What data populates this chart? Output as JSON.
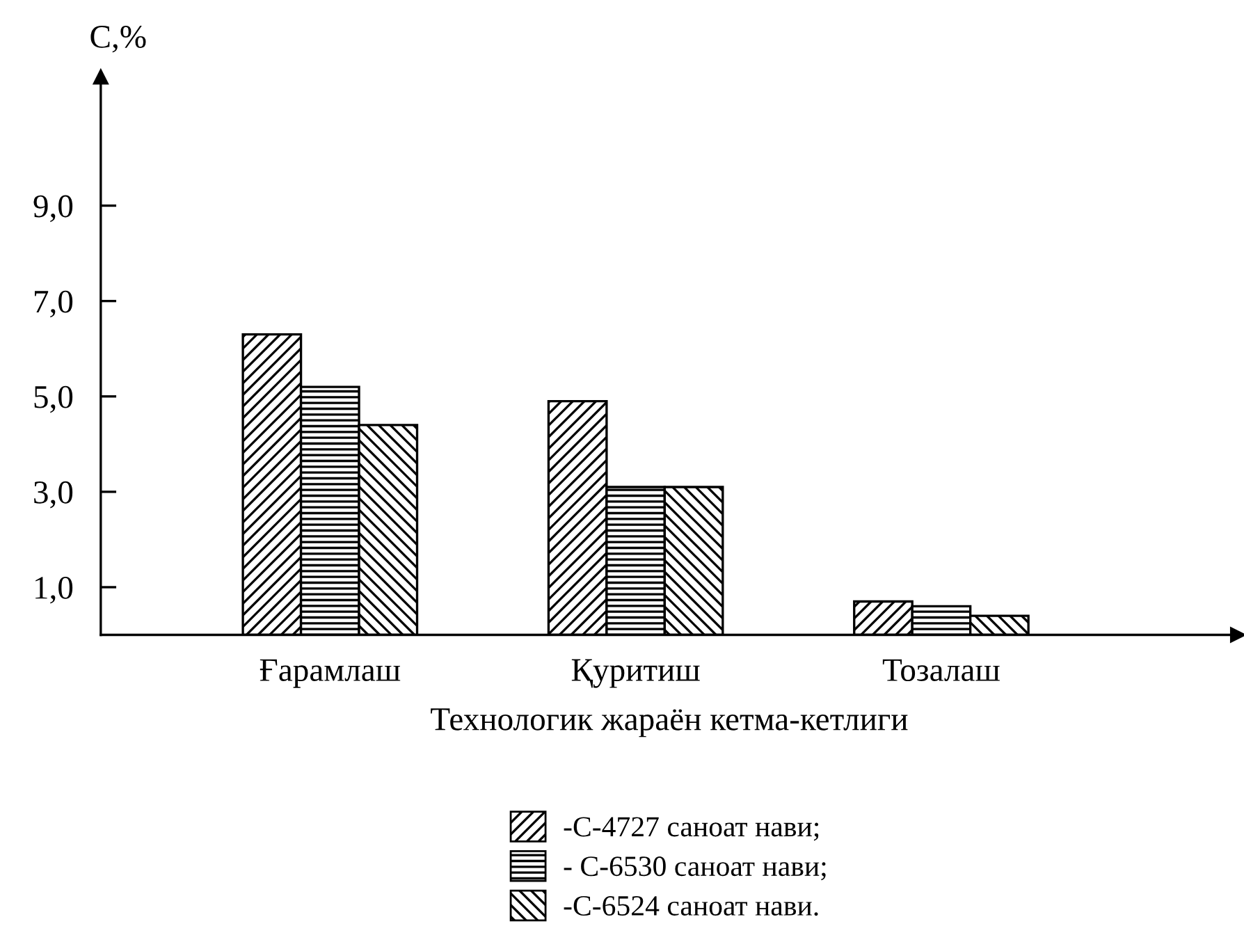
{
  "chart_data": {
    "type": "bar",
    "ylabel": "С,%",
    "xlabel": "Технологик жараён кетма-кетлиги",
    "categories": [
      "Ғарамлаш",
      "Қуритиш",
      "Тозалаш"
    ],
    "series": [
      {
        "name": "-С-4727 саноат нави;",
        "color": "#000000",
        "values": [
          6.3,
          4.9,
          0.7
        ]
      },
      {
        "name": "- С-6530 саноат нави;",
        "color": "#000000",
        "values": [
          5.2,
          3.1,
          0.6
        ]
      },
      {
        "name": "-С-6524 саноат нави.",
        "color": "#000000",
        "values": [
          4.4,
          3.1,
          0.4
        ]
      }
    ],
    "ylim": [
      0,
      11.7
    ],
    "yticks": [
      {
        "value": 1,
        "label": "1,0"
      },
      {
        "value": 3,
        "label": "3,0"
      },
      {
        "value": 5,
        "label": "5,0"
      },
      {
        "value": 7,
        "label": "7,0"
      },
      {
        "value": 9,
        "label": "9,0"
      }
    ],
    "grid": false,
    "legend": "bottom"
  }
}
